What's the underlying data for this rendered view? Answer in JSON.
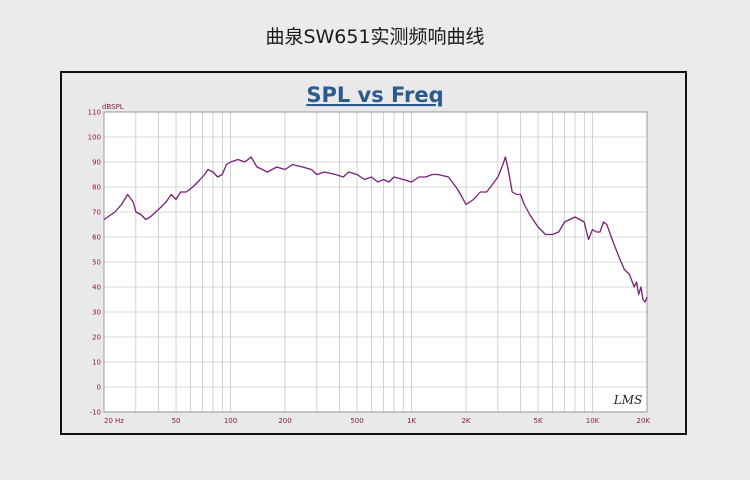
{
  "page": {
    "title": "曲泉SW651实测频响曲线"
  },
  "chart_data": {
    "type": "line",
    "title": "SPL vs Freq",
    "ylabel": "dBSPL",
    "xlabel": "",
    "xscale": "log",
    "xlim": [
      20,
      20000
    ],
    "ylim": [
      -10,
      110
    ],
    "grid": true,
    "x_tick_labels": [
      {
        "v": 20,
        "t": "20"
      },
      {
        "v": 50,
        "t": "50"
      },
      {
        "v": 100,
        "t": "100"
      },
      {
        "v": 200,
        "t": "200"
      },
      {
        "v": 500,
        "t": "500"
      },
      {
        "v": 1000,
        "t": "1K"
      },
      {
        "v": 2000,
        "t": "2K"
      },
      {
        "v": 5000,
        "t": "5K"
      },
      {
        "v": 10000,
        "t": "10K"
      },
      {
        "v": 20000,
        "t": "20K"
      }
    ],
    "x_unit_label": "Hz",
    "y_ticks": [
      -10,
      0,
      10,
      20,
      30,
      40,
      50,
      60,
      70,
      80,
      90,
      100,
      110
    ],
    "watermark": "LMS",
    "colors": {
      "line": "#7a1f7a",
      "axis_text": "#8b1a4a",
      "title": "#2a5b8c",
      "grid": "#b4b4b4",
      "plot_bg": "#ffffff"
    },
    "series": [
      {
        "points": [
          [
            20,
            67
          ],
          [
            23,
            70
          ],
          [
            25,
            73
          ],
          [
            27,
            77
          ],
          [
            29,
            74
          ],
          [
            30,
            70
          ],
          [
            32,
            69
          ],
          [
            34,
            67
          ],
          [
            36,
            68
          ],
          [
            40,
            71
          ],
          [
            44,
            74
          ],
          [
            47,
            77
          ],
          [
            50,
            75
          ],
          [
            53,
            78
          ],
          [
            57,
            78
          ],
          [
            62,
            80
          ],
          [
            68,
            83
          ],
          [
            72,
            85
          ],
          [
            75,
            87
          ],
          [
            80,
            86
          ],
          [
            85,
            84
          ],
          [
            90,
            85
          ],
          [
            95,
            89
          ],
          [
            100,
            90
          ],
          [
            110,
            91
          ],
          [
            120,
            90
          ],
          [
            130,
            92
          ],
          [
            140,
            88
          ],
          [
            150,
            87
          ],
          [
            160,
            86
          ],
          [
            180,
            88
          ],
          [
            200,
            87
          ],
          [
            220,
            89
          ],
          [
            250,
            88
          ],
          [
            280,
            87
          ],
          [
            300,
            85
          ],
          [
            330,
            86
          ],
          [
            380,
            85
          ],
          [
            420,
            84
          ],
          [
            450,
            86
          ],
          [
            500,
            85
          ],
          [
            550,
            83
          ],
          [
            600,
            84
          ],
          [
            650,
            82
          ],
          [
            700,
            83
          ],
          [
            750,
            82
          ],
          [
            800,
            84
          ],
          [
            900,
            83
          ],
          [
            1000,
            82
          ],
          [
            1100,
            84
          ],
          [
            1200,
            84
          ],
          [
            1300,
            85
          ],
          [
            1400,
            85
          ],
          [
            1600,
            84
          ],
          [
            1800,
            79
          ],
          [
            1900,
            76
          ],
          [
            2000,
            73
          ],
          [
            2100,
            74
          ],
          [
            2200,
            75
          ],
          [
            2400,
            78
          ],
          [
            2600,
            78
          ],
          [
            2800,
            81
          ],
          [
            3000,
            84
          ],
          [
            3200,
            89
          ],
          [
            3300,
            92
          ],
          [
            3400,
            88
          ],
          [
            3500,
            83
          ],
          [
            3600,
            78
          ],
          [
            3800,
            77
          ],
          [
            4000,
            77
          ],
          [
            4200,
            73
          ],
          [
            4500,
            69
          ],
          [
            5000,
            64
          ],
          [
            5500,
            61
          ],
          [
            6000,
            61
          ],
          [
            6500,
            62
          ],
          [
            7000,
            66
          ],
          [
            7500,
            67
          ],
          [
            8000,
            68
          ],
          [
            8500,
            67
          ],
          [
            9000,
            66
          ],
          [
            9500,
            59
          ],
          [
            10000,
            63
          ],
          [
            10500,
            62
          ],
          [
            11000,
            62
          ],
          [
            11500,
            66
          ],
          [
            12000,
            65
          ],
          [
            13000,
            58
          ],
          [
            14000,
            52
          ],
          [
            15000,
            47
          ],
          [
            16000,
            45
          ],
          [
            17000,
            40
          ],
          [
            17500,
            42
          ],
          [
            18000,
            37
          ],
          [
            18500,
            40
          ],
          [
            19000,
            35
          ],
          [
            19500,
            34
          ],
          [
            20000,
            36
          ]
        ]
      }
    ]
  }
}
